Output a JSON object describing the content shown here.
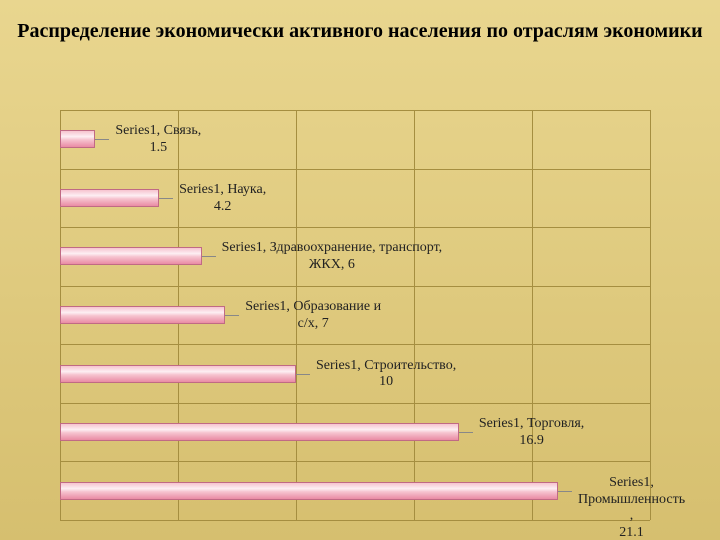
{
  "title": "Распределение экономически активного населения по\nотраслям экономики",
  "background_gradient": {
    "from": "#e9d68f",
    "to": "#d6bf6f"
  },
  "chart": {
    "type": "bar-horizontal",
    "series_name": "Series1",
    "x_max": 25,
    "grid_step": 5,
    "grid_color": "#a58e40",
    "cat_line_color": "#a58e40",
    "bar_fill_top": "#f6c3cf",
    "bar_fill_mid": "#fdeff3",
    "bar_fill_bot": "#e98ba4",
    "bar_border": "#c06a84",
    "label_color": "#222222",
    "items": [
      {
        "category": "Связь",
        "value": 1.5,
        "label": "Series1, Связь,\n1.5"
      },
      {
        "category": "Наука",
        "value": 4.2,
        "label": "Series1, Наука,\n4.2"
      },
      {
        "category": "Здравоохранение, транспорт, ЖКХ",
        "value": 6,
        "label": "Series1, Здравоохранение, транспорт,\nЖКХ, 6"
      },
      {
        "category": "Образование и с/х",
        "value": 7,
        "label": "Series1, Образование и\nс/х, 7"
      },
      {
        "category": "Строительство",
        "value": 10,
        "label": "Series1, Строительство,\n10"
      },
      {
        "category": "Торговля",
        "value": 16.9,
        "label": "Series1, Торговля,\n16.9"
      },
      {
        "category": "Промышленность ",
        "value": 21.1,
        "label": "Series1, Промышленность ,\n21.1"
      }
    ]
  }
}
